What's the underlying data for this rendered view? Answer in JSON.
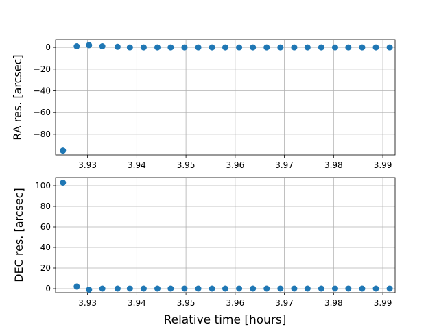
{
  "chart_data": [
    {
      "type": "scatter",
      "ylabel": "RA res. [arcsec]",
      "xlim": [
        3.9235,
        3.9925
      ],
      "ylim": [
        -99,
        7
      ],
      "xticks": [
        3.93,
        3.94,
        3.95,
        3.96,
        3.97,
        3.98,
        3.99
      ],
      "xtick_labels": [
        "3.93",
        "3.94",
        "3.95",
        "3.96",
        "3.97",
        "3.98",
        "3.99"
      ],
      "yticks": [
        0,
        -20,
        -40,
        -60,
        -80
      ],
      "ytick_labels": [
        "0",
        "−20",
        "−40",
        "−60",
        "−80"
      ],
      "grid": true,
      "color": "#1f77b4",
      "series": [
        {
          "x": [
            3.925,
            3.9278,
            3.9303,
            3.933,
            3.9361,
            3.9386,
            3.9414,
            3.9442,
            3.9469,
            3.9497,
            3.9525,
            3.9553,
            3.958,
            3.9608,
            3.9636,
            3.9664,
            3.9692,
            3.972,
            3.9747,
            3.9775,
            3.9803,
            3.983,
            3.9858,
            3.9886,
            3.9914
          ],
          "y": [
            -95,
            1.0,
            2.0,
            1.0,
            0.5,
            0,
            0,
            0,
            0,
            0,
            0,
            0,
            0,
            0,
            0,
            0,
            0,
            0,
            0,
            0,
            0,
            0,
            0,
            0,
            0
          ]
        }
      ]
    },
    {
      "type": "scatter",
      "ylabel": "DEC res. [arcsec]",
      "xlabel": "Relative time [hours]",
      "xlim": [
        3.9235,
        3.9925
      ],
      "ylim": [
        -4,
        108
      ],
      "xticks": [
        3.93,
        3.94,
        3.95,
        3.96,
        3.97,
        3.98,
        3.99
      ],
      "xtick_labels": [
        "3.93",
        "3.94",
        "3.95",
        "3.96",
        "3.97",
        "3.98",
        "3.99"
      ],
      "yticks": [
        0,
        20,
        40,
        60,
        80,
        100
      ],
      "ytick_labels": [
        "0",
        "20",
        "40",
        "60",
        "80",
        "100"
      ],
      "grid": true,
      "color": "#1f77b4",
      "series": [
        {
          "x": [
            3.925,
            3.9278,
            3.9303,
            3.933,
            3.9361,
            3.9386,
            3.9414,
            3.9442,
            3.9469,
            3.9497,
            3.9525,
            3.9553,
            3.958,
            3.9608,
            3.9636,
            3.9664,
            3.9692,
            3.972,
            3.9747,
            3.9775,
            3.9803,
            3.983,
            3.9858,
            3.9886,
            3.9914
          ],
          "y": [
            103,
            2.0,
            -1.0,
            0,
            0,
            0,
            0,
            0,
            0,
            0,
            0,
            0,
            0,
            0,
            0,
            0,
            0,
            0,
            0,
            0,
            0,
            0,
            0,
            0,
            0
          ]
        }
      ]
    }
  ]
}
